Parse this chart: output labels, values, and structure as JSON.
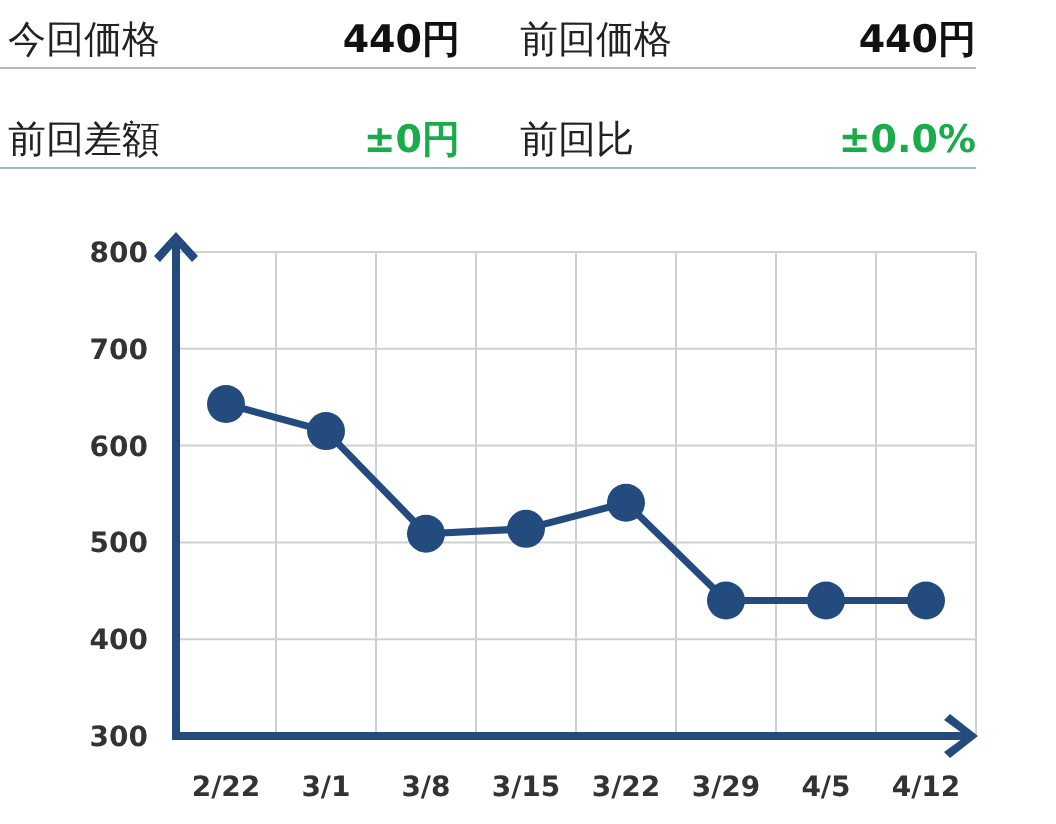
{
  "chart_data": [
    {
      "type": "other",
      "annotations": [
        "今回価格",
        "440円",
        "前回価格",
        "440円",
        "前回差額",
        "±0円",
        "前回比",
        "±0.0%"
      ]
    },
    {
      "type": "line",
      "categories": [
        "2/22",
        "3/1",
        "3/8",
        "3/15",
        "3/22",
        "3/29",
        "4/5",
        "4/12"
      ],
      "series": [
        {
          "color": "#244b7d",
          "values": [
            643,
            615,
            509,
            514,
            541,
            440,
            440,
            440
          ]
        }
      ],
      "ylim": [
        300,
        800
      ],
      "yticks": [
        300,
        400,
        500,
        600,
        700,
        800
      ],
      "grid": true,
      "marker": "circle",
      "line_style": "solid"
    }
  ]
}
